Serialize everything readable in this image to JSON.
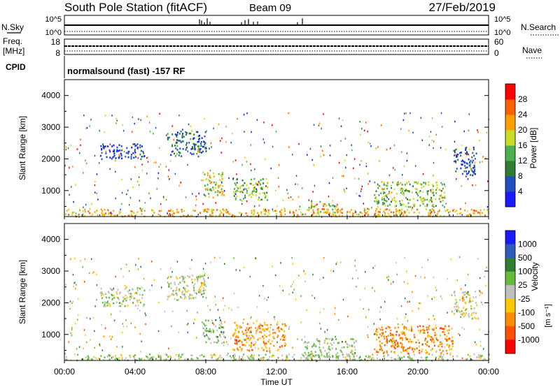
{
  "header": {
    "station": "South Pole Station (fitACF)",
    "beam": "Beam 09",
    "date": "27/Feb/2019"
  },
  "top_panels": {
    "nsky_label": "N.Sky",
    "nsky_ticks": [
      "10^5",
      "10^0"
    ],
    "nsearch_label": "N.Search",
    "nsearch_ticks": [
      "10^5",
      "10^0"
    ],
    "freq_label_1": "Freq.",
    "freq_label_2": "[MHz]",
    "freq_ticks": [
      "18",
      "8"
    ],
    "nave_label": "Nave",
    "nave_ticks": [
      "60",
      "0"
    ],
    "cpid_label": "CPID",
    "cpid_text": "normalsound (fast) -157 RF"
  },
  "x_axis": {
    "label": "Time UT",
    "ticks": [
      "00:00",
      "04:00",
      "08:00",
      "12:00",
      "16:00",
      "20:00",
      "00:00"
    ]
  },
  "chart_data": [
    {
      "type": "heatmap",
      "name": "power",
      "xlabel": "Time UT",
      "ylabel": "Slant Range [km]",
      "xlim": [
        0,
        24
      ],
      "ylim": [
        180,
        4500
      ],
      "yticks": [
        "1000",
        "2000",
        "3000",
        "4000"
      ],
      "colorbar": {
        "label": "Power [dB]",
        "ticks": [
          "4",
          "8",
          "12",
          "16",
          "20",
          "24",
          "28"
        ],
        "colors": [
          "#1a1aff",
          "#2050c0",
          "#2e7d32",
          "#4caf50",
          "#c8dc28",
          "#ffa000",
          "#ff6000",
          "#ff0000"
        ],
        "range": [
          0,
          30
        ]
      },
      "regions": [
        {
          "t0": 5.8,
          "t1": 8.0,
          "r0": 2100,
          "r1": 2900,
          "value": 7
        },
        {
          "t0": 2.0,
          "t1": 4.5,
          "r0": 2000,
          "r1": 2500,
          "value": 5
        },
        {
          "t0": 7.8,
          "t1": 9.0,
          "r0": 800,
          "r1": 1600,
          "value": 16
        },
        {
          "t0": 9.5,
          "t1": 11.5,
          "r0": 700,
          "r1": 1400,
          "value": 14
        },
        {
          "t0": 13.8,
          "t1": 15.5,
          "r0": 300,
          "r1": 700,
          "value": 18
        },
        {
          "t0": 17.5,
          "t1": 21.5,
          "r0": 500,
          "r1": 1300,
          "value": 15
        },
        {
          "t0": 22.0,
          "t1": 23.3,
          "r0": 1500,
          "r1": 2400,
          "value": 6
        },
        {
          "t0": 0.0,
          "t1": 24.0,
          "r0": 200,
          "r1": 450,
          "value": 20
        }
      ]
    },
    {
      "type": "heatmap",
      "name": "velocity",
      "xlabel": "Time UT",
      "ylabel": "Slant Range [km]",
      "xlim": [
        0,
        24
      ],
      "ylim": [
        180,
        4500
      ],
      "yticks": [
        "1000",
        "2000",
        "3000",
        "4000"
      ],
      "colorbar": {
        "label": "Velocity",
        "unit": "[m s⁻¹]",
        "ticks": [
          "1000",
          "500",
          "100",
          "25",
          "-25",
          "-100",
          "-500",
          "-1000"
        ],
        "colors": [
          "#1a1aff",
          "#2e5cb8",
          "#2e7d32",
          "#66bb3a",
          "#c0c0c0",
          "#ffc800",
          "#ff8c00",
          "#ff5000",
          "#ff0000"
        ],
        "range": [
          -1000,
          1000
        ]
      },
      "regions": [
        {
          "t0": 5.8,
          "t1": 8.0,
          "r0": 2100,
          "r1": 2900,
          "value": 0
        },
        {
          "t0": 2.0,
          "t1": 4.5,
          "r0": 1900,
          "r1": 2500,
          "value": 0
        },
        {
          "t0": 7.8,
          "t1": 9.0,
          "r0": 700,
          "r1": 1500,
          "value": 150
        },
        {
          "t0": 9.5,
          "t1": 12.5,
          "r0": 500,
          "r1": 1400,
          "value": -400
        },
        {
          "t0": 13.5,
          "t1": 16.5,
          "r0": 300,
          "r1": 900,
          "value": 100
        },
        {
          "t0": 17.5,
          "t1": 22.0,
          "r0": 400,
          "r1": 1300,
          "value": -450
        },
        {
          "t0": 22.0,
          "t1": 23.3,
          "r0": 1500,
          "r1": 2400,
          "value": -60
        },
        {
          "t0": 0.0,
          "t1": 24.0,
          "r0": 200,
          "r1": 400,
          "value": 60
        }
      ]
    }
  ]
}
